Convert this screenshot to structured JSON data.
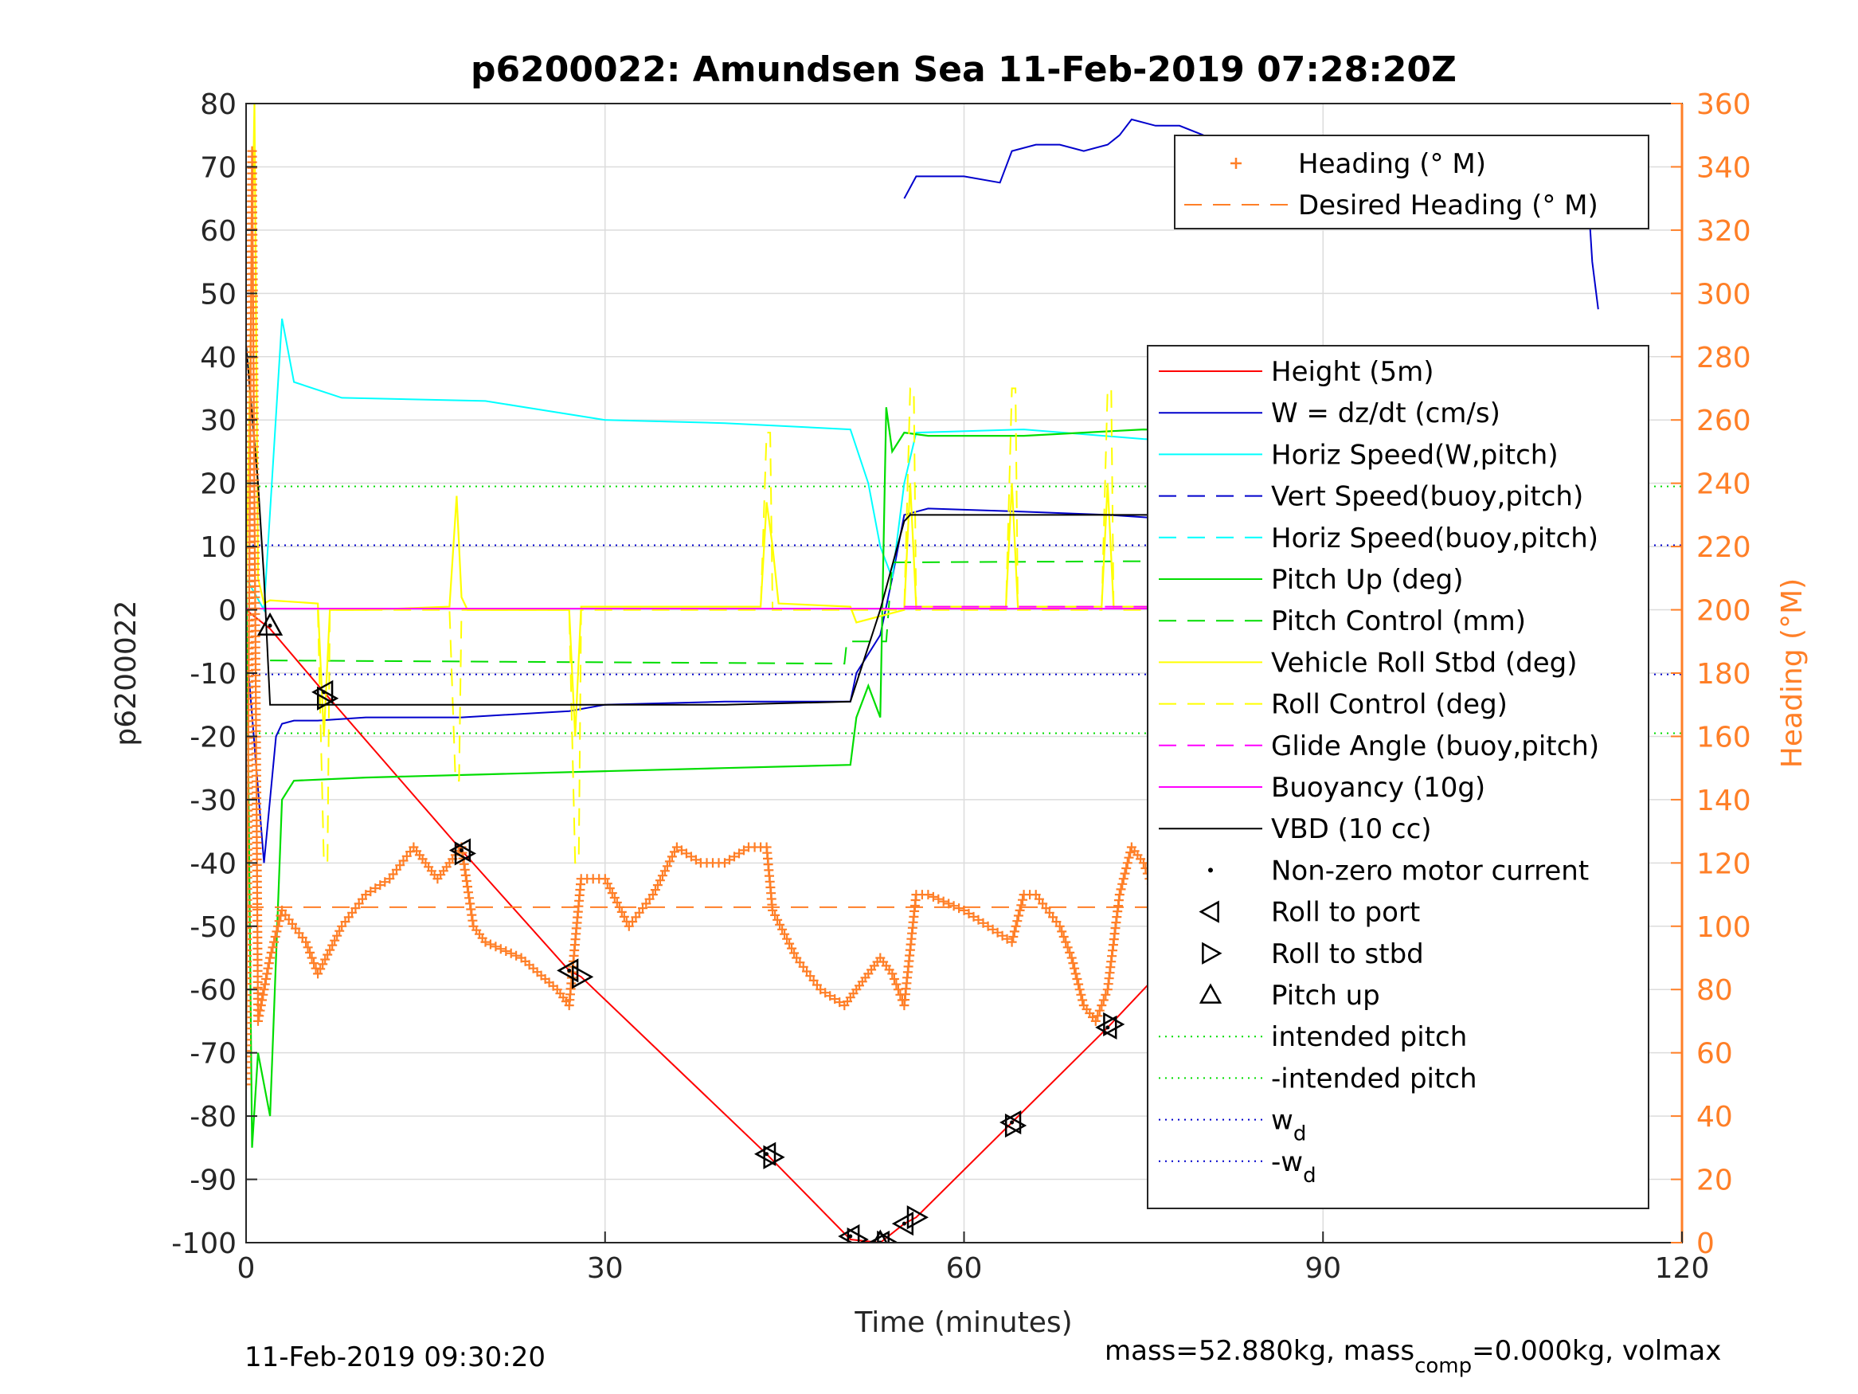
{
  "chart_data": {
    "type": "line",
    "title": "p6200022: Amundsen Sea 11-Feb-2019 07:28:20Z",
    "xlabel": "Time (minutes)",
    "ylabel": "p6200022",
    "y2label": "Heading (°M)",
    "xlim": [
      0,
      120
    ],
    "ylim": [
      -100,
      80
    ],
    "y2lim": [
      0,
      360
    ],
    "xticks": [
      0,
      30,
      60,
      90,
      120
    ],
    "yticks": [
      -100,
      -90,
      -80,
      -70,
      -60,
      -50,
      -40,
      -30,
      -20,
      -10,
      0,
      10,
      20,
      30,
      40,
      50,
      60,
      70,
      80
    ],
    "y2ticks": [
      0,
      20,
      40,
      60,
      80,
      100,
      120,
      140,
      160,
      180,
      200,
      220,
      240,
      260,
      280,
      300,
      320,
      340,
      360
    ],
    "grid": true,
    "colors": {
      "height": "#ff0000",
      "w": "#0000cc",
      "horiz_speed": "#00ffff",
      "pitch": "#00dd00",
      "roll": "#ffff00",
      "glide": "#ff00ff",
      "vbd": "#000000",
      "heading": "#ff7f27",
      "axis2": "#ff7f27"
    },
    "legend_heading": [
      {
        "label": "Heading (° M)",
        "style": "plus",
        "color": "#ff7f27"
      },
      {
        "label": "Desired Heading (° M)",
        "style": "dash",
        "color": "#ff7f27"
      }
    ],
    "legend_main": [
      {
        "label": "Height (5m)",
        "style": "solid",
        "color": "#ff0000"
      },
      {
        "label": "W = dz/dt (cm/s)",
        "style": "solid",
        "color": "#0000cc"
      },
      {
        "label": "Horiz Speed(W,pitch)",
        "style": "solid",
        "color": "#00ffff"
      },
      {
        "label": "Vert Speed(buoy,pitch)",
        "style": "dash",
        "color": "#0000cc"
      },
      {
        "label": "Horiz Speed(buoy,pitch)",
        "style": "dash",
        "color": "#00ffff"
      },
      {
        "label": "Pitch Up (deg)",
        "style": "solid",
        "color": "#00dd00"
      },
      {
        "label": "Pitch Control (mm)",
        "style": "dash",
        "color": "#00dd00"
      },
      {
        "label": "Vehicle Roll Stbd (deg)",
        "style": "solid",
        "color": "#ffff00"
      },
      {
        "label": "Roll Control (deg)",
        "style": "dash",
        "color": "#ffff00"
      },
      {
        "label": "Glide Angle (buoy,pitch)",
        "style": "dash",
        "color": "#ff00ff"
      },
      {
        "label": "Buoyancy (10g)",
        "style": "solid",
        "color": "#ff00ff"
      },
      {
        "label": "VBD (10 cc)",
        "style": "solid",
        "color": "#000000"
      },
      {
        "label": "Non-zero motor current",
        "style": "dot",
        "color": "#000000"
      },
      {
        "label": "Roll to port",
        "style": "tri-left",
        "color": "#000000"
      },
      {
        "label": "Roll to stbd",
        "style": "tri-right",
        "color": "#000000"
      },
      {
        "label": "Pitch up",
        "style": "tri-up",
        "color": "#000000"
      },
      {
        "label": "intended pitch",
        "style": "dotted",
        "color": "#00dd00"
      },
      {
        "label": "-intended pitch",
        "style": "dotted",
        "color": "#00dd00"
      },
      {
        "label": "w",
        "sub": "d",
        "style": "dotted",
        "color": "#0000cc"
      },
      {
        "label": "-w",
        "sub": "d",
        "style": "dotted",
        "color": "#0000cc"
      }
    ],
    "series": [
      {
        "key": "height",
        "x": [
          0,
          2,
          6.5,
          18,
          27,
          28,
          43.5,
          50.5,
          53,
          55,
          56,
          64,
          72,
          81,
          84.5,
          93.5,
          97,
          104.5,
          110.5,
          114
        ],
        "y": [
          0,
          -3,
          -13,
          -38,
          -57,
          -58,
          -86,
          -99.5,
          -100,
          -97,
          -96,
          -81,
          -66,
          -48,
          -44,
          -29,
          -24,
          -12,
          -3,
          0
        ]
      },
      {
        "key": "w",
        "x": [
          0,
          1.5,
          2.5,
          3,
          4,
          6,
          10,
          18,
          27,
          30,
          40,
          50.5,
          51,
          53,
          54,
          55,
          57,
          65,
          72,
          80,
          90,
          100,
          110,
          112,
          113,
          114
        ],
        "y": [
          -5,
          -40,
          -20,
          -18,
          -17.5,
          -17.5,
          -17,
          -17,
          -16,
          -15,
          -14.5,
          -14.5,
          -10,
          -4,
          5,
          15,
          16,
          15.5,
          15,
          14,
          13.5,
          12.5,
          12,
          9,
          10,
          5
        ]
      },
      {
        "key": "horiz_speed",
        "x": [
          0,
          1.5,
          3,
          4,
          8,
          20,
          30,
          40,
          50.5,
          52,
          53,
          54,
          55,
          56,
          65,
          75,
          85,
          95,
          105,
          110,
          112,
          114
        ],
        "y": [
          5,
          0,
          46,
          36,
          33.5,
          33,
          30,
          29.5,
          28.5,
          20,
          10,
          5,
          20,
          28,
          28.5,
          27,
          26,
          25,
          23.5,
          22,
          20,
          18
        ]
      },
      {
        "key": "pitch",
        "x": [
          0,
          0.5,
          1,
          2,
          3,
          4,
          10,
          20,
          30,
          40,
          50.5,
          51,
          52,
          53,
          53.5,
          54,
          55,
          57,
          65,
          75,
          85,
          95,
          105,
          110,
          112,
          113,
          114
        ],
        "y": [
          10,
          -85,
          -70,
          -80,
          -30,
          -27,
          -26.5,
          -26,
          -25.5,
          -25,
          -24.5,
          -17,
          -12,
          -17,
          32,
          25,
          28,
          27.5,
          27.5,
          28.5,
          28,
          27.5,
          27.5,
          27,
          25,
          28,
          5
        ]
      },
      {
        "key": "pitch_control",
        "x": [
          2,
          50,
          50.2,
          53.5,
          54,
          112
        ],
        "y": [
          -8,
          -8.5,
          -5,
          -5,
          7.5,
          8
        ]
      },
      {
        "key": "roll",
        "x": [
          0,
          0.7,
          1,
          1.5,
          2,
          6,
          6.5,
          7,
          10,
          17,
          17.6,
          18,
          18.5,
          27,
          27.5,
          28,
          43,
          43.5,
          44,
          44.5,
          50.5,
          51,
          55,
          55.5,
          56,
          63.5,
          64,
          64.5,
          71.5,
          72,
          72.5,
          80,
          80.5,
          81,
          88.5,
          89,
          89.5,
          96.5,
          97,
          97.5,
          104.5,
          105,
          105.5,
          111.5,
          112,
          112.5,
          114
        ],
        "y": [
          0,
          80,
          5,
          1,
          1.5,
          1,
          -20,
          0,
          0,
          0.5,
          18,
          2,
          0,
          0,
          -20,
          0.5,
          0.5,
          17,
          10,
          1,
          0.5,
          -2,
          0,
          20,
          0.5,
          0.5,
          20,
          0.5,
          0.5,
          20,
          0.5,
          0.5,
          20,
          0.5,
          0.5,
          20,
          0.5,
          0.5,
          20,
          0.5,
          0.5,
          20,
          0.5,
          0.5,
          20,
          0.5,
          -30
        ]
      },
      {
        "key": "roll_control",
        "x": [
          6,
          6.5,
          6.8,
          7,
          17,
          17.5,
          17.8,
          18,
          27,
          27.5,
          27.8,
          28,
          43,
          43.5,
          43.8,
          44,
          55,
          55.5,
          55.8,
          56,
          63.5,
          64,
          64.3,
          64.5,
          71.5,
          72,
          72.3,
          72.5,
          80,
          80.5,
          80.8,
          81,
          88.5,
          89,
          89.3,
          89.5,
          96.5,
          97,
          97.3,
          97.5,
          104.5,
          105,
          105.3,
          105.5,
          111.5,
          112,
          112.3,
          112.5
        ],
        "y": [
          0,
          -40,
          -40,
          0,
          0,
          -27,
          -27,
          0,
          0,
          -40,
          -40,
          0,
          0,
          28,
          28,
          0,
          0,
          35,
          35,
          0,
          0,
          35,
          35,
          0,
          0,
          35,
          35,
          0,
          0,
          35,
          35,
          0,
          0,
          35,
          35,
          0,
          0,
          35,
          35,
          0,
          0,
          35,
          35,
          0,
          0,
          35,
          35,
          0
        ]
      },
      {
        "key": "glide",
        "x": [
          55,
          112
        ],
        "y": [
          0.5,
          0.5
        ]
      },
      {
        "key": "buoyancy",
        "x": [
          0,
          114
        ],
        "y": [
          0.2,
          0.2
        ]
      },
      {
        "key": "vbd",
        "x": [
          0,
          1,
          1.5,
          2,
          3,
          10,
          20,
          30,
          40,
          50.5,
          53,
          55,
          55.5,
          60,
          70,
          80,
          90,
          100,
          110,
          112,
          113.5
        ],
        "y": [
          42,
          20,
          5,
          -15,
          -15,
          -15,
          -15,
          -15,
          -15,
          -14.5,
          0,
          14,
          15,
          15,
          15,
          15,
          15,
          15,
          15,
          14.5,
          10
        ]
      },
      {
        "key": "heading",
        "axis": "y2",
        "x": [
          0,
          0.5,
          1,
          2,
          3,
          5,
          6,
          8,
          10,
          12,
          14,
          15,
          16,
          17,
          18,
          19,
          20,
          23,
          26,
          27,
          28,
          30,
          32,
          34,
          36,
          38,
          40,
          42,
          43.5,
          44,
          46,
          48,
          50,
          51,
          52,
          53,
          54,
          55,
          56,
          57,
          60,
          62,
          64,
          65,
          66,
          68,
          69,
          70,
          71,
          72,
          73,
          74,
          75,
          76,
          78,
          80,
          81,
          82,
          83,
          84,
          85,
          86,
          88,
          90,
          92,
          94,
          96,
          98,
          100,
          102,
          104,
          105,
          106,
          108,
          110,
          112,
          113,
          114
        ],
        "y": [
          50,
          345,
          70,
          90,
          105,
          95,
          85,
          100,
          110,
          115,
          125,
          120,
          115,
          120,
          125,
          100,
          95,
          90,
          80,
          75,
          115,
          115,
          100,
          110,
          125,
          120,
          120,
          125,
          125,
          105,
          90,
          80,
          75,
          80,
          85,
          90,
          85,
          75,
          110,
          110,
          105,
          100,
          95,
          110,
          110,
          100,
          90,
          75,
          70,
          80,
          110,
          125,
          120,
          110,
          105,
          100,
          95,
          90,
          80,
          75,
          110,
          115,
          100,
          95,
          105,
          110,
          115,
          105,
          95,
          90,
          80,
          110,
          115,
          100,
          90,
          140,
          165,
          195
        ]
      },
      {
        "key": "heading_hi",
        "axis": "y2",
        "x": [
          55,
          56,
          58,
          60,
          63,
          64,
          66,
          68,
          70,
          72,
          73,
          74,
          76,
          78,
          80,
          82,
          84,
          86,
          88,
          90,
          92,
          94,
          96,
          98,
          100,
          102,
          104,
          106,
          108,
          110,
          111,
          112,
          112.5,
          113
        ],
        "y": [
          330,
          337,
          337,
          337,
          335,
          345,
          347,
          347,
          345,
          347,
          350,
          355,
          353,
          353,
          350,
          345,
          340,
          340,
          340,
          340,
          335,
          338,
          340,
          336,
          336,
          335,
          333,
          335,
          335,
          335,
          343,
          340,
          310,
          295
        ]
      },
      {
        "key": "desired_heading",
        "axis": "y2",
        "x": [
          0,
          114
        ],
        "y": [
          106,
          106
        ]
      }
    ],
    "ref_lines": [
      {
        "key": "intended_pitch",
        "y": 19.5,
        "color": "#00dd00"
      },
      {
        "key": "neg_intended_pitch",
        "y": -19.5,
        "color": "#00dd00"
      },
      {
        "key": "wd",
        "y": 10.2,
        "color": "#0000cc"
      },
      {
        "key": "neg_wd",
        "y": -10.2,
        "color": "#0000cc"
      }
    ],
    "markers": {
      "roll_to_port": {
        "x": [
          6.5,
          18,
          27,
          43.5,
          50.5,
          53,
          55,
          64,
          72,
          81,
          84.5,
          93.5,
          97,
          104.5,
          110.5,
          113
        ],
        "y": [
          -13,
          -38,
          -57,
          -86,
          -99,
          -100,
          -97,
          -81,
          -66,
          -48,
          -44,
          -30,
          -24,
          -12,
          -3,
          -1
        ]
      },
      "roll_to_stbd": {
        "x": [
          6.7,
          18.2,
          28,
          44,
          51,
          53.5,
          56,
          64.2,
          72.4,
          84.8,
          93.8,
          97.3,
          105,
          111,
          113.8
        ],
        "y": [
          -14,
          -38.5,
          -58,
          -86.5,
          -99.5,
          -100,
          -96,
          -81.5,
          -65.5,
          -43.5,
          -29.5,
          -23.5,
          -11.5,
          -2.5,
          -0.5
        ]
      },
      "pitch_up": {
        "x": [
          2,
          53
        ],
        "y": [
          -2.5,
          -100
        ]
      },
      "motor_current": {
        "x": [
          2,
          6.5,
          18,
          27,
          43.5,
          50.5,
          53,
          55,
          64,
          72,
          84.5,
          93.5,
          97,
          104.5,
          110.5,
          113
        ],
        "y": [
          -2.5,
          -13,
          -38,
          -57,
          -86,
          -99,
          -100,
          -97,
          -81,
          -66,
          -44,
          -30,
          -24,
          -12,
          -3,
          -1
        ]
      }
    }
  },
  "footer": {
    "timestamp": "11-Feb-2019 09:30:20",
    "mass_prefix": "mass=52.880kg, mass",
    "mass_sub": "comp",
    "mass_suffix": "=0.000kg, volmax"
  }
}
